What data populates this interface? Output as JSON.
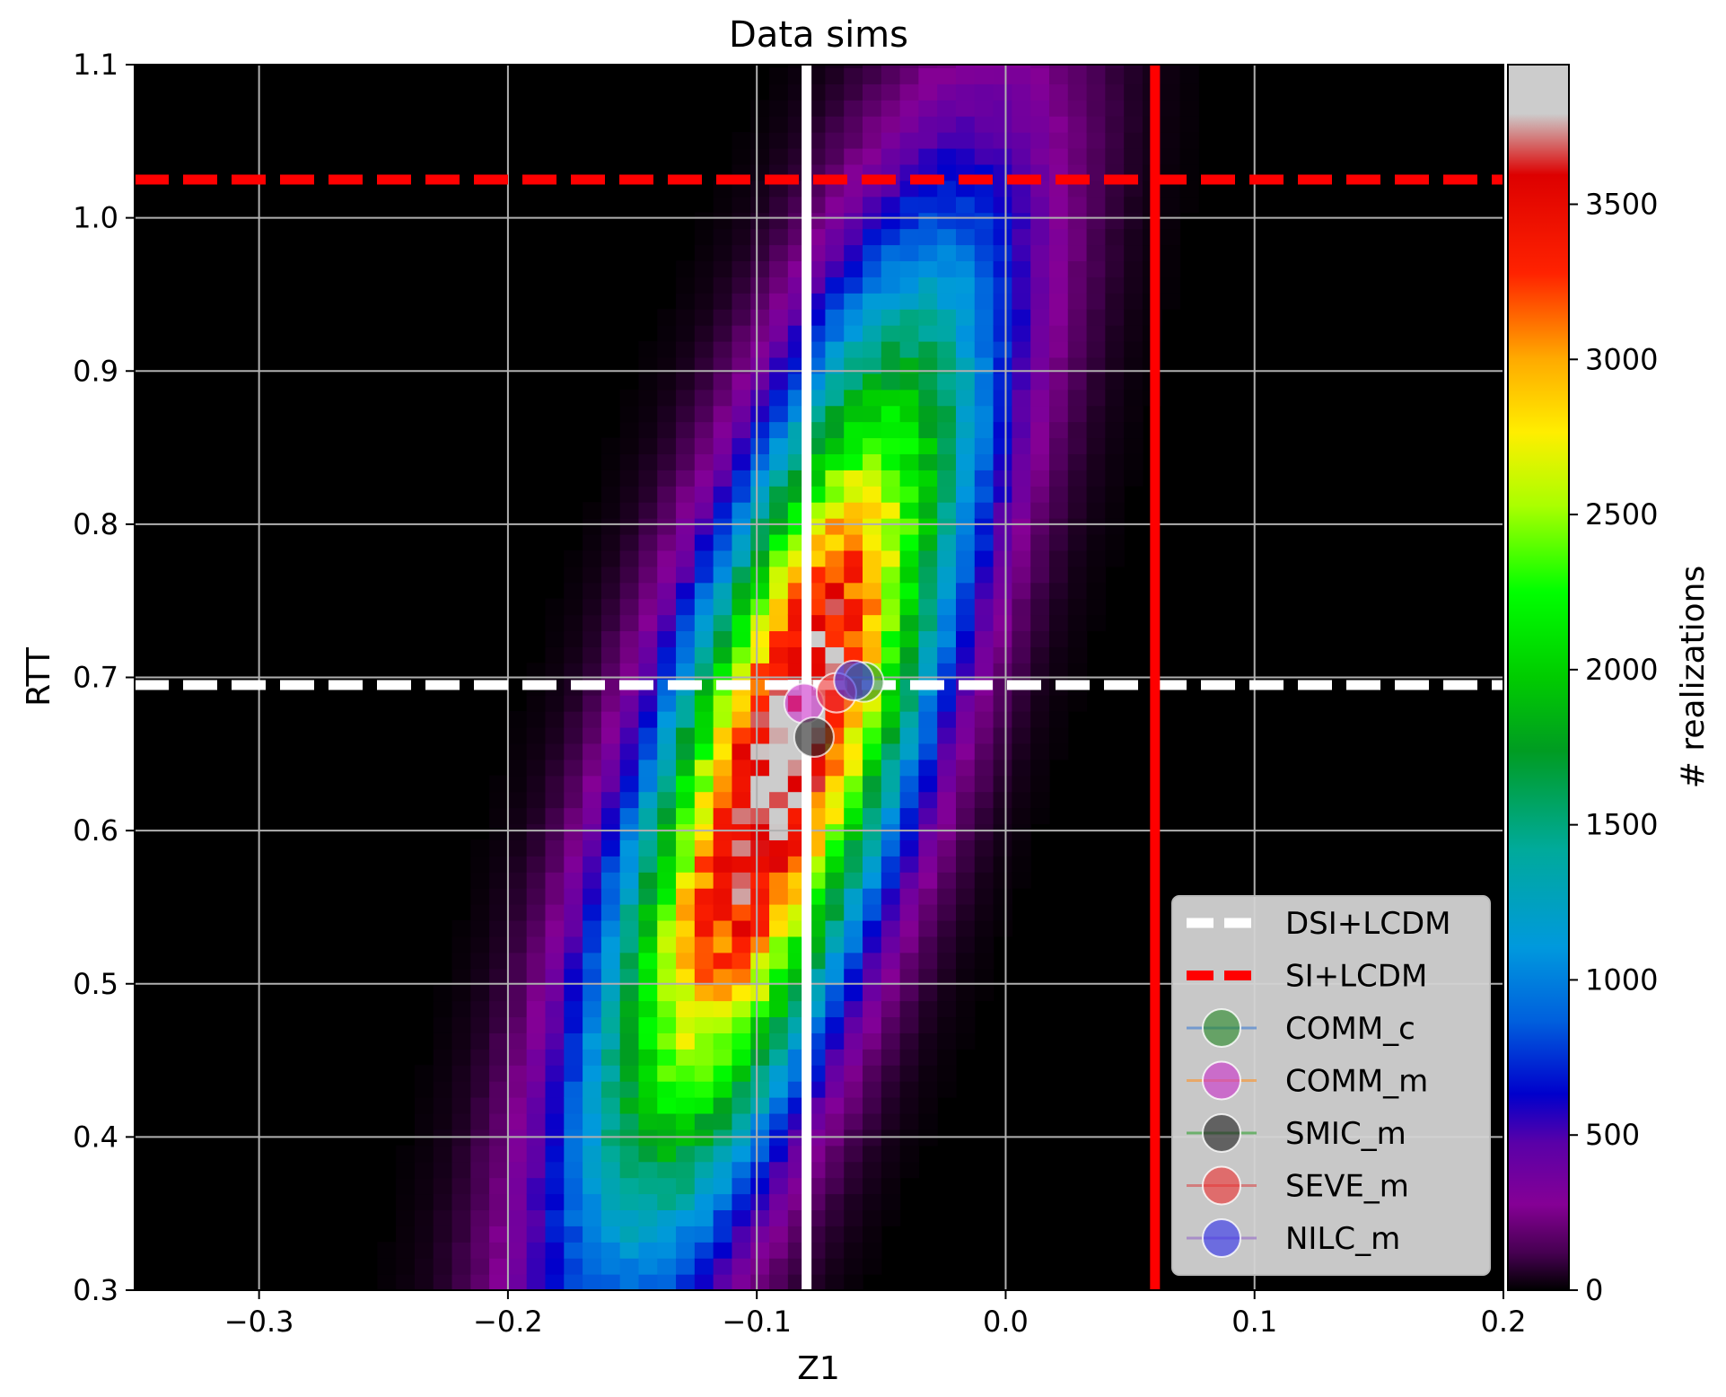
{
  "chart_data": {
    "type": "heatmap",
    "title": "Data sims",
    "xlabel": "Z1",
    "ylabel": "RTT",
    "xlim": [
      -0.35,
      0.2
    ],
    "ylim": [
      0.3,
      1.1
    ],
    "xticks": [
      "−0.3",
      "−0.2",
      "−0.1",
      "0.0",
      "0.1",
      "0.2"
    ],
    "xtick_values": [
      -0.3,
      -0.2,
      -0.1,
      0.0,
      0.1,
      0.2
    ],
    "yticks": [
      "0.3",
      "0.4",
      "0.5",
      "0.6",
      "0.7",
      "0.8",
      "0.9",
      "1.0",
      "1.1"
    ],
    "ytick_values": [
      0.3,
      0.4,
      0.5,
      0.6,
      0.7,
      0.8,
      0.9,
      1.0,
      1.1
    ],
    "grid": true,
    "colormap": "nipy_spectral",
    "colorbar": {
      "label": "# realizations",
      "range": [
        0,
        3950
      ],
      "ticks": [
        "0",
        "500",
        "1000",
        "1500",
        "2000",
        "2500",
        "3000",
        "3500"
      ],
      "tick_values": [
        0,
        500,
        1000,
        1500,
        2000,
        2500,
        3000,
        3500
      ]
    },
    "density": {
      "center_x": -0.09,
      "center_y": 0.645,
      "peak": 3900,
      "orientation": "positively correlated diagonal band from about (-0.3, 0.38) to (0.06, 1.05)"
    },
    "reference_lines": [
      {
        "name": "DSI+LCDM",
        "axis": "x",
        "value": -0.08,
        "color": "#ffffff",
        "style": "solid"
      },
      {
        "name": "DSI+LCDM",
        "axis": "y",
        "value": 0.695,
        "color": "#ffffff",
        "style": "dashed"
      },
      {
        "name": "SI+LCDM",
        "axis": "x",
        "value": 0.06,
        "color": "#ff0000",
        "style": "solid"
      },
      {
        "name": "SI+LCDM",
        "axis": "y",
        "value": 1.025,
        "color": "#ff0000",
        "style": "dashed"
      }
    ],
    "points": [
      {
        "name": "COMM_c",
        "x": -0.057,
        "y": 0.697,
        "color": "#2a8a2a",
        "line_color": "#5f8fd0"
      },
      {
        "name": "COMM_m",
        "x": -0.081,
        "y": 0.683,
        "color": "#cc33cc",
        "line_color": "#f0a050"
      },
      {
        "name": "SMIC_m",
        "x": -0.077,
        "y": 0.661,
        "color": "#222222",
        "line_color": "#55aa55"
      },
      {
        "name": "SEVE_m",
        "x": -0.068,
        "y": 0.69,
        "color": "#ee3333",
        "line_color": "#d46a6a"
      },
      {
        "name": "NILC_m",
        "x": -0.061,
        "y": 0.698,
        "color": "#3333ee",
        "line_color": "#a080c8"
      }
    ],
    "legend": {
      "position": "lower-right",
      "entries": [
        {
          "label": "DSI+LCDM",
          "kind": "dashed-line",
          "color": "#ffffff"
        },
        {
          "label": "SI+LCDM",
          "kind": "dashed-line",
          "color": "#ff0000"
        },
        {
          "label": "COMM_c",
          "kind": "marker",
          "color": "#2a8a2a",
          "line_color": "#5f8fd0"
        },
        {
          "label": "COMM_m",
          "kind": "marker",
          "color": "#cc33cc",
          "line_color": "#f0a050"
        },
        {
          "label": "SMIC_m",
          "kind": "marker",
          "color": "#222222",
          "line_color": "#55aa55"
        },
        {
          "label": "SEVE_m",
          "kind": "marker",
          "color": "#ee3333",
          "line_color": "#d46a6a"
        },
        {
          "label": "NILC_m",
          "kind": "marker",
          "color": "#3333ee",
          "line_color": "#a080c8"
        }
      ]
    }
  }
}
